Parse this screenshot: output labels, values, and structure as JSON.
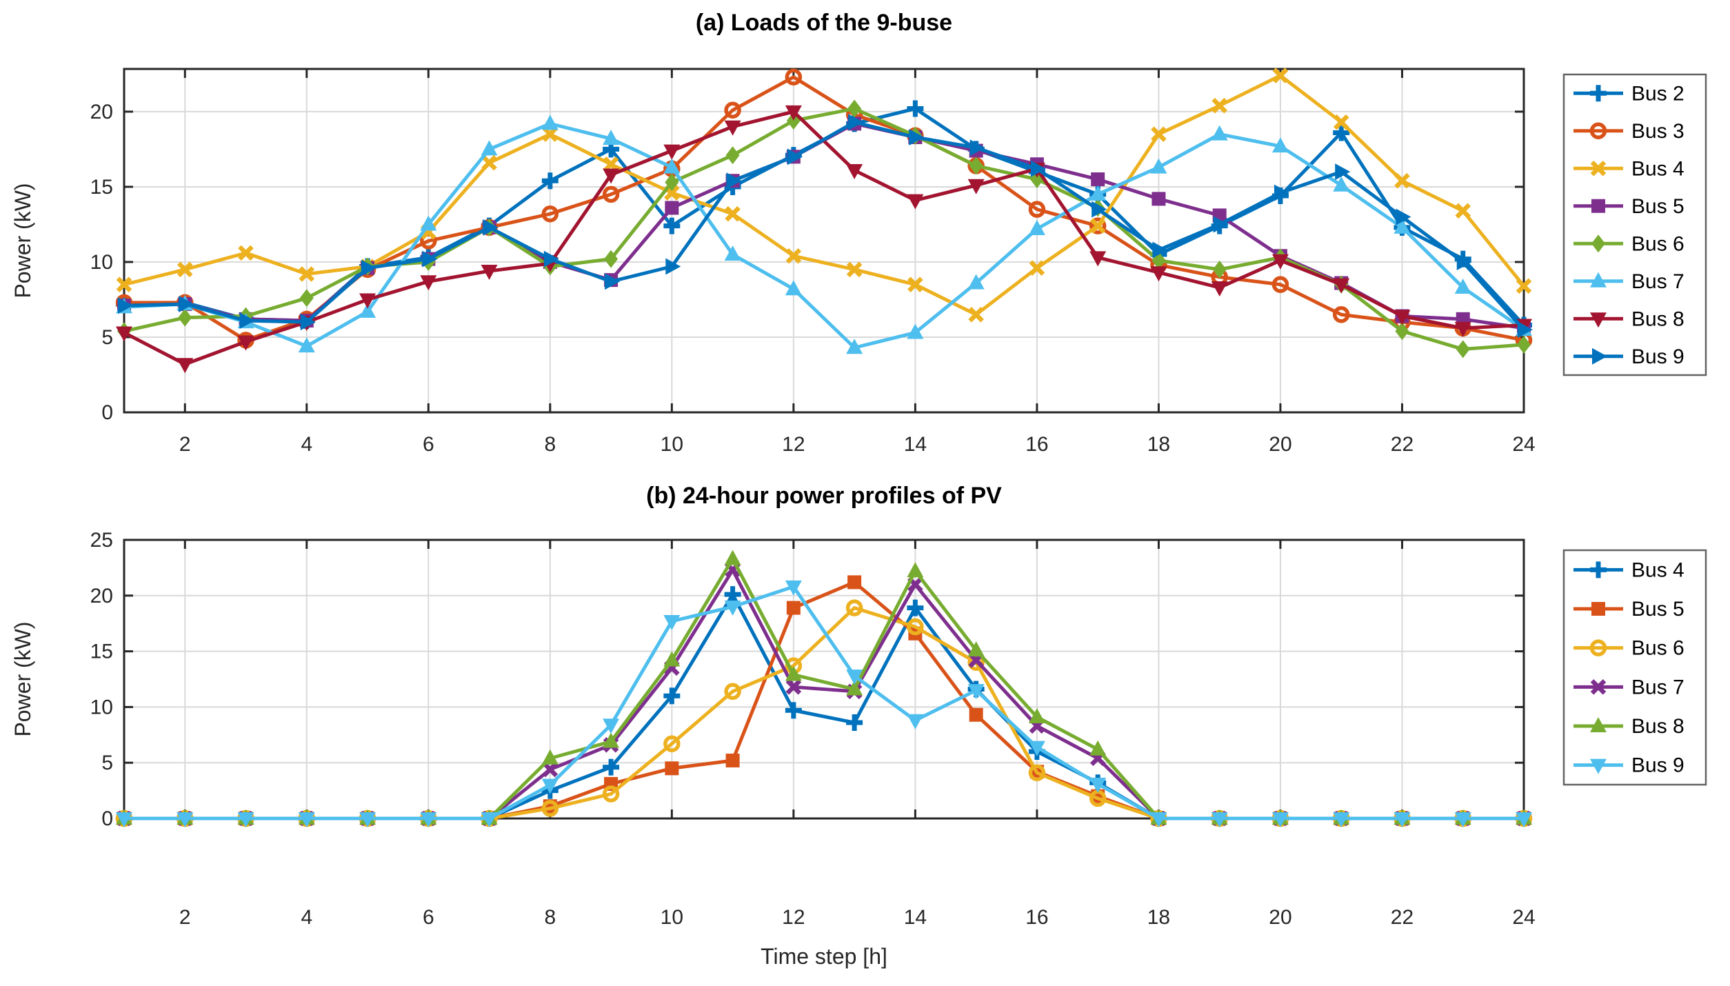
{
  "figure": {
    "background": "#ffffff",
    "axis_color": "#262626",
    "grid_color": "#d9d9d9",
    "tick_label_color": "#262626",
    "legend_border_color": "#636363",
    "series_palette": {
      "blue": "#0072BD",
      "orange": "#D95319",
      "yellow": "#EDB120",
      "purple": "#7E2F8E",
      "green": "#77AC30",
      "cyan": "#4DBEEE",
      "darkred": "#A2142F"
    }
  },
  "chart_data": [
    {
      "type": "line",
      "title": "(a) Loads of the 9-buse",
      "xlabel": "",
      "ylabel": "Power (kW)",
      "x": [
        1,
        2,
        3,
        4,
        5,
        6,
        7,
        8,
        9,
        10,
        11,
        12,
        13,
        14,
        15,
        16,
        17,
        18,
        19,
        20,
        21,
        22,
        23,
        24
      ],
      "xticks": [
        2,
        4,
        6,
        8,
        10,
        12,
        14,
        16,
        18,
        20,
        22,
        24
      ],
      "yticks": [
        0,
        5,
        10,
        15,
        20
      ],
      "xlim": [
        1,
        24
      ],
      "ylim": [
        0,
        22.84
      ],
      "grid": true,
      "legend_position": "outside-right",
      "series": [
        {
          "name": "Bus 2",
          "color": "#0072BD",
          "marker": "plus",
          "values": [
            7.2,
            7.3,
            6.2,
            6.1,
            9.7,
            10.3,
            12.4,
            15.4,
            17.5,
            12.4,
            15.0,
            17.1,
            19.2,
            20.2,
            17.5,
            16.0,
            14.5,
            10.5,
            12.4,
            14.4,
            18.6,
            12.3,
            10.2,
            5.8
          ]
        },
        {
          "name": "Bus 3",
          "color": "#D95319",
          "marker": "circle",
          "values": [
            7.3,
            7.3,
            4.8,
            6.2,
            9.5,
            11.4,
            12.3,
            13.2,
            14.5,
            16.2,
            20.1,
            22.3,
            19.8,
            18.4,
            16.4,
            13.5,
            12.4,
            9.8,
            9.0,
            8.5,
            6.5,
            6.0,
            5.6,
            4.8
          ]
        },
        {
          "name": "Bus 4",
          "color": "#EDB120",
          "marker": "x",
          "values": [
            8.5,
            9.5,
            10.6,
            9.2,
            9.7,
            12.0,
            16.6,
            18.5,
            16.5,
            14.6,
            13.2,
            10.4,
            9.5,
            8.5,
            6.5,
            9.6,
            12.4,
            18.5,
            20.4,
            22.4,
            19.3,
            15.4,
            13.4,
            8.4
          ]
        },
        {
          "name": "Bus 5",
          "color": "#7E2F8E",
          "marker": "square",
          "values": [
            7.1,
            7.2,
            6.2,
            6.1,
            9.6,
            10.2,
            12.3,
            10.0,
            8.8,
            13.6,
            15.4,
            17.0,
            19.2,
            18.3,
            17.4,
            16.5,
            15.5,
            14.2,
            13.1,
            10.4,
            8.6,
            6.4,
            6.2,
            5.6
          ]
        },
        {
          "name": "Bus 6",
          "color": "#77AC30",
          "marker": "diamond",
          "values": [
            5.4,
            6.3,
            6.4,
            7.6,
            9.7,
            10.0,
            12.3,
            9.7,
            10.2,
            15.3,
            17.1,
            19.4,
            20.2,
            18.4,
            16.4,
            15.5,
            13.6,
            10.1,
            9.5,
            10.3,
            8.5,
            5.4,
            4.2,
            4.5
          ]
        },
        {
          "name": "Bus 7",
          "color": "#4DBEEE",
          "marker": "triangle-up",
          "values": [
            7.0,
            7.2,
            6.0,
            4.4,
            6.7,
            12.5,
            17.5,
            19.2,
            18.2,
            16.3,
            10.5,
            8.2,
            4.3,
            5.3,
            8.6,
            12.2,
            14.5,
            16.3,
            18.5,
            17.7,
            15.1,
            12.3,
            8.3,
            5.5
          ]
        },
        {
          "name": "Bus 8",
          "color": "#A2142F",
          "marker": "triangle-down",
          "values": [
            5.3,
            3.2,
            4.7,
            6.0,
            7.5,
            8.7,
            9.4,
            9.9,
            15.8,
            17.4,
            19.0,
            20.0,
            16.1,
            14.1,
            15.1,
            16.2,
            10.3,
            9.3,
            8.3,
            10.1,
            8.5,
            6.4,
            5.6,
            5.8
          ]
        },
        {
          "name": "Bus 9",
          "color": "#0072BD",
          "marker": "triangle-right",
          "values": [
            7.1,
            7.2,
            6.1,
            6.0,
            9.6,
            10.2,
            12.3,
            10.2,
            8.7,
            9.7,
            15.4,
            17.0,
            19.3,
            18.3,
            17.6,
            16.2,
            13.5,
            10.8,
            12.5,
            14.6,
            16.0,
            13.0,
            10.0,
            5.5
          ]
        }
      ]
    },
    {
      "type": "line",
      "title": "(b) 24-hour power profiles of PV",
      "xlabel": "Time step [h]",
      "ylabel": "Power (kW)",
      "x": [
        1,
        2,
        3,
        4,
        5,
        6,
        7,
        8,
        9,
        10,
        11,
        12,
        13,
        14,
        15,
        16,
        17,
        18,
        19,
        20,
        21,
        22,
        23,
        24
      ],
      "xticks": [
        2,
        4,
        6,
        8,
        10,
        12,
        14,
        16,
        18,
        20,
        22,
        24
      ],
      "yticks": [
        0,
        5,
        10,
        15,
        20,
        25
      ],
      "xlim": [
        1,
        24
      ],
      "ylim": [
        0,
        25
      ],
      "grid": true,
      "legend_position": "outside-right",
      "series": [
        {
          "name": "Bus 4",
          "color": "#0072BD",
          "marker": "plus",
          "values": [
            0,
            0,
            0,
            0,
            0,
            0,
            0,
            2.5,
            4.6,
            11.0,
            20.1,
            9.7,
            8.6,
            18.9,
            11.6,
            6.0,
            3.2,
            0,
            0,
            0,
            0,
            0,
            0,
            0
          ]
        },
        {
          "name": "Bus 5",
          "color": "#D95319",
          "marker": "square",
          "values": [
            0,
            0,
            0,
            0,
            0,
            0,
            0,
            1.1,
            3.1,
            4.5,
            5.2,
            18.9,
            21.2,
            16.6,
            9.3,
            4.2,
            2.0,
            0,
            0,
            0,
            0,
            0,
            0,
            0
          ]
        },
        {
          "name": "Bus 6",
          "color": "#EDB120",
          "marker": "circle",
          "values": [
            0,
            0,
            0,
            0,
            0,
            0,
            0,
            0.9,
            2.2,
            6.7,
            11.4,
            13.7,
            18.9,
            17.2,
            14.0,
            4.1,
            1.8,
            0,
            0,
            0,
            0,
            0,
            0,
            0
          ]
        },
        {
          "name": "Bus 7",
          "color": "#7E2F8E",
          "marker": "x",
          "values": [
            0,
            0,
            0,
            0,
            0,
            0,
            0,
            4.4,
            6.6,
            13.5,
            22.3,
            11.8,
            11.4,
            21.0,
            14.2,
            8.3,
            5.4,
            0,
            0,
            0,
            0,
            0,
            0,
            0
          ]
        },
        {
          "name": "Bus 8",
          "color": "#77AC30",
          "marker": "triangle-up",
          "values": [
            0,
            0,
            0,
            0,
            0,
            0,
            0,
            5.4,
            6.9,
            14.2,
            23.3,
            12.9,
            11.6,
            22.2,
            15.1,
            9.1,
            6.2,
            0,
            0,
            0,
            0,
            0,
            0,
            0
          ]
        },
        {
          "name": "Bus 9",
          "color": "#4DBEEE",
          "marker": "triangle-down",
          "values": [
            0,
            0,
            0,
            0,
            0,
            0,
            0,
            3.0,
            8.4,
            17.7,
            19.0,
            20.8,
            12.8,
            8.8,
            11.5,
            6.4,
            3.1,
            0,
            0,
            0,
            0,
            0,
            0,
            0
          ]
        }
      ]
    }
  ]
}
